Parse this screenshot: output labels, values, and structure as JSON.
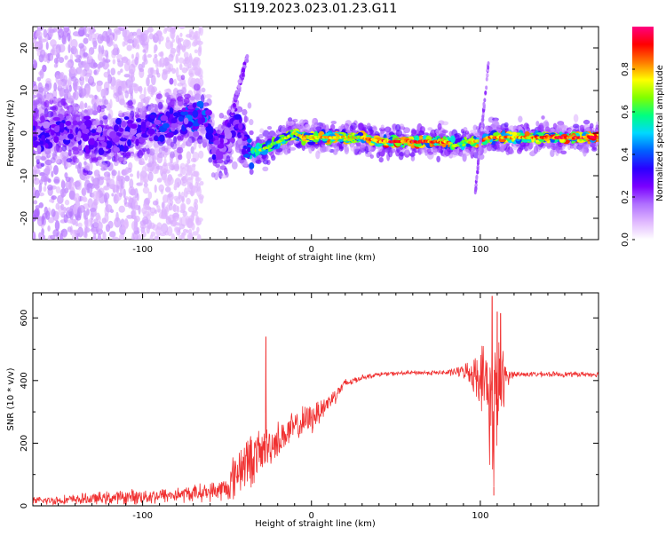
{
  "title": "S119.2023.023.01.23.G11",
  "chart_data": [
    {
      "type": "heatmap",
      "name": "spectrogram",
      "xlabel": "Height of straight line (km)",
      "ylabel": "Frequency (Hz)",
      "xlim": [
        -165,
        170
      ],
      "ylim": [
        -25,
        25
      ],
      "xticks": [
        -100,
        0,
        100
      ],
      "yticks": [
        -20,
        -10,
        0,
        10,
        20
      ],
      "colorbar": {
        "label": "Normalized spectral amplitude",
        "range": [
          0,
          1
        ],
        "ticks": [
          0.0,
          0.2,
          0.4,
          0.6,
          0.8
        ],
        "colors": [
          "#ffffff",
          "#e0b8ff",
          "#b070ff",
          "#7a00ff",
          "#2a00ff",
          "#0060ff",
          "#00d8ff",
          "#00ff80",
          "#80ff00",
          "#ffff00",
          "#ff7800",
          "#ff0000",
          "#ff0080"
        ]
      },
      "ridge": {
        "description": "main frequency ridge vs height",
        "x": [
          -160,
          -150,
          -140,
          -130,
          -120,
          -110,
          -100,
          -90,
          -80,
          -70,
          -62,
          -58,
          -55,
          -50,
          -45,
          -40,
          -35,
          -30,
          -25,
          -20,
          -15,
          -10,
          -5,
          0,
          10,
          20,
          30,
          40,
          50,
          60,
          70,
          80,
          85,
          90,
          95,
          100,
          105,
          110,
          120,
          130,
          140,
          150,
          160,
          170
        ],
        "y": [
          0,
          1,
          0,
          -1,
          -2,
          0,
          1,
          2,
          3,
          3,
          4,
          -3,
          -4,
          -1,
          3,
          -2,
          -4,
          -4,
          -3,
          -2,
          -1,
          0,
          -1,
          -1,
          -1,
          -1,
          -1,
          -2,
          -2,
          -2,
          -2,
          -2,
          -3,
          -2,
          -2,
          -2,
          -1,
          -1,
          -1,
          -1,
          -1,
          -1,
          -1,
          -1
        ],
        "strength": [
          0.3,
          0.3,
          0.3,
          0.3,
          0.3,
          0.3,
          0.3,
          0.35,
          0.35,
          0.4,
          0.4,
          0.3,
          0.25,
          0.3,
          0.3,
          0.3,
          0.55,
          0.6,
          0.6,
          0.6,
          0.65,
          0.65,
          0.7,
          0.7,
          0.75,
          0.7,
          0.7,
          0.8,
          0.85,
          0.85,
          0.8,
          0.8,
          0.6,
          0.6,
          0.7,
          0.75,
          0.8,
          0.8,
          0.75,
          0.75,
          0.8,
          0.85,
          0.85,
          0.85
        ]
      },
      "features": {
        "rising_streak_x": [
          -47,
          -38
        ],
        "rising_streak_y": [
          5,
          18
        ],
        "vertical_streak_x": [
          97,
          105
        ],
        "vertical_streak_y": [
          -14,
          17
        ]
      }
    },
    {
      "type": "line",
      "name": "snr",
      "xlabel": "Height of straight line (km)",
      "ylabel": "SNR (10 * v/v)",
      "xlim": [
        -165,
        170
      ],
      "ylim": [
        0,
        680
      ],
      "xticks": [
        -100,
        0,
        100
      ],
      "yticks": [
        0,
        200,
        400,
        600
      ],
      "color": "#f03030",
      "envelope": {
        "x": [
          -165,
          -140,
          -120,
          -100,
          -80,
          -60,
          -50,
          -46,
          -42,
          -35,
          -30,
          -25,
          -20,
          -10,
          0,
          10,
          15,
          20,
          30,
          40,
          60,
          80,
          90,
          95,
          100,
          104,
          107,
          109,
          111,
          113,
          115,
          118,
          125,
          140,
          170
        ],
        "mean": [
          15,
          20,
          25,
          30,
          35,
          45,
          55,
          90,
          130,
          150,
          170,
          190,
          210,
          250,
          280,
          330,
          360,
          390,
          410,
          420,
          425,
          425,
          430,
          425,
          415,
          380,
          280,
          350,
          360,
          380,
          410,
          420,
          420,
          420,
          420
        ],
        "noise": [
          15,
          20,
          25,
          30,
          30,
          35,
          50,
          90,
          110,
          100,
          90,
          80,
          70,
          60,
          60,
          40,
          30,
          20,
          10,
          8,
          8,
          10,
          25,
          60,
          110,
          180,
          270,
          230,
          200,
          160,
          60,
          15,
          10,
          10,
          10
        ]
      },
      "peaks": [
        {
          "x": -27,
          "y": 540
        },
        {
          "x": 107,
          "y": 670
        },
        {
          "x": 108,
          "y": 60
        },
        {
          "x": 110,
          "y": 620
        },
        {
          "x": 112,
          "y": 615
        }
      ]
    }
  ]
}
